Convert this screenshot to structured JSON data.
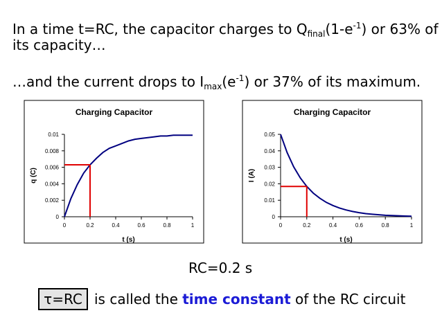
{
  "text": {
    "line1_a": "In a time t=RC, the capacitor charges to Q",
    "line1_sub": "final",
    "line1_b": "(1-e",
    "line1_sup": "-1",
    "line1_c": ") or 63% of",
    "line2": "its capacity…",
    "line3_a": "…and the current drops to I",
    "line3_sub": "max",
    "line3_b": "(e",
    "line3_sup": "-1",
    "line3_c": ") or 37% of its maximum.",
    "rc_value": "RC=0.2 s",
    "tau_label": "τ=RC",
    "tc_a": "is called the ",
    "tc_strong": "time constant",
    "tc_b": " of the RC circuit"
  },
  "colors": {
    "curve": "#000080",
    "marker": "#e00000",
    "emphasis": "#1b1bd6"
  },
  "chart_data": [
    {
      "type": "line",
      "title": "Charging Capacitor",
      "xlabel": "t (s)",
      "ylabel": "q (C)",
      "xlim": [
        0,
        1
      ],
      "ylim": [
        0,
        0.01
      ],
      "xticks": [
        "0",
        "0.2",
        "0.4",
        "0.6",
        "0.8",
        "1"
      ],
      "yticks": [
        "0",
        "0.002",
        "0.004",
        "0.006",
        "0.008",
        "0.01"
      ],
      "series": [
        {
          "x": [
            0,
            0.05,
            0.1,
            0.15,
            0.2,
            0.25,
            0.3,
            0.35,
            0.4,
            0.45,
            0.5,
            0.55,
            0.6,
            0.65,
            0.7,
            0.75,
            0.8,
            0.85,
            0.9,
            0.95,
            1
          ],
          "y": [
            0,
            0.0022,
            0.0039,
            0.0053,
            0.0063,
            0.0071,
            0.0078,
            0.0083,
            0.0086,
            0.0089,
            0.0092,
            0.0094,
            0.0095,
            0.0096,
            0.0097,
            0.0098,
            0.0098,
            0.0099,
            0.0099,
            0.0099,
            0.0099
          ]
        }
      ],
      "marker": {
        "x": 0.2,
        "y": 0.0063
      }
    },
    {
      "type": "line",
      "title": "Charging Capacitor",
      "xlabel": "t (s)",
      "ylabel": "I (A)",
      "xlim": [
        0,
        1
      ],
      "ylim": [
        0,
        0.05
      ],
      "xticks": [
        "0",
        "0.2",
        "0.4",
        "0.6",
        "0.8",
        "1"
      ],
      "yticks": [
        "0",
        "0.01",
        "0.02",
        "0.03",
        "0.04",
        "0.05"
      ],
      "series": [
        {
          "x": [
            0,
            0.05,
            0.1,
            0.15,
            0.2,
            0.25,
            0.3,
            0.35,
            0.4,
            0.45,
            0.5,
            0.55,
            0.6,
            0.65,
            0.7,
            0.75,
            0.8,
            0.85,
            0.9,
            0.95,
            1
          ],
          "y": [
            0.05,
            0.039,
            0.0303,
            0.0236,
            0.0184,
            0.0143,
            0.0112,
            0.0087,
            0.0068,
            0.0053,
            0.0041,
            0.0032,
            0.0025,
            0.0019,
            0.0015,
            0.0012,
            0.0009,
            0.0007,
            0.0006,
            0.0004,
            0.0003
          ]
        }
      ],
      "marker": {
        "x": 0.2,
        "y": 0.0184
      }
    }
  ]
}
